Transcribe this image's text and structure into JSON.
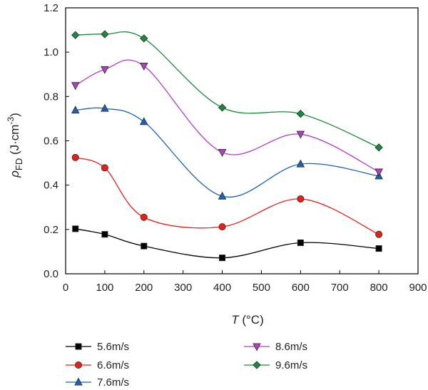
{
  "chart_data": {
    "type": "line",
    "x": [
      25,
      100,
      200,
      400,
      600,
      800
    ],
    "xlim": [
      0,
      900
    ],
    "ylim": [
      0.0,
      1.2
    ],
    "x_ticks": [
      "0",
      "100",
      "200",
      "300",
      "400",
      "500",
      "600",
      "700",
      "800",
      "900"
    ],
    "y_ticks": [
      "0.0",
      "0.2",
      "0.4",
      "0.6",
      "0.8",
      "1.0",
      "1.2"
    ],
    "xlabel": {
      "var": "T",
      "unit": " (°C)"
    },
    "ylabel": {
      "var": "ρ",
      "sub": "FD",
      "unit": " (J·cm",
      "sup": "-3",
      "close": ")"
    },
    "grid": false,
    "legend_position": "bottom",
    "smoothed": true,
    "series": [
      {
        "name": "5.6m/s",
        "marker": "square",
        "color": "#000000",
        "values": [
          0.203,
          0.178,
          0.125,
          0.072,
          0.14,
          0.114
        ]
      },
      {
        "name": "6.6m/s",
        "marker": "circle",
        "color": "#e8201c",
        "values": [
          0.525,
          0.478,
          0.255,
          0.212,
          0.338,
          0.178
        ]
      },
      {
        "name": "7.6m/s",
        "marker": "triangle-up",
        "color": "#1c63b8",
        "values": [
          0.738,
          0.746,
          0.686,
          0.35,
          0.495,
          0.441
        ]
      },
      {
        "name": "8.6m/s",
        "marker": "triangle-down",
        "color": "#b23fc2",
        "values": [
          0.85,
          0.922,
          0.938,
          0.548,
          0.63,
          0.46
        ]
      },
      {
        "name": "9.6m/s",
        "marker": "diamond",
        "color": "#1a8a3c",
        "values": [
          1.077,
          1.081,
          1.062,
          0.75,
          0.722,
          0.57
        ]
      }
    ]
  }
}
